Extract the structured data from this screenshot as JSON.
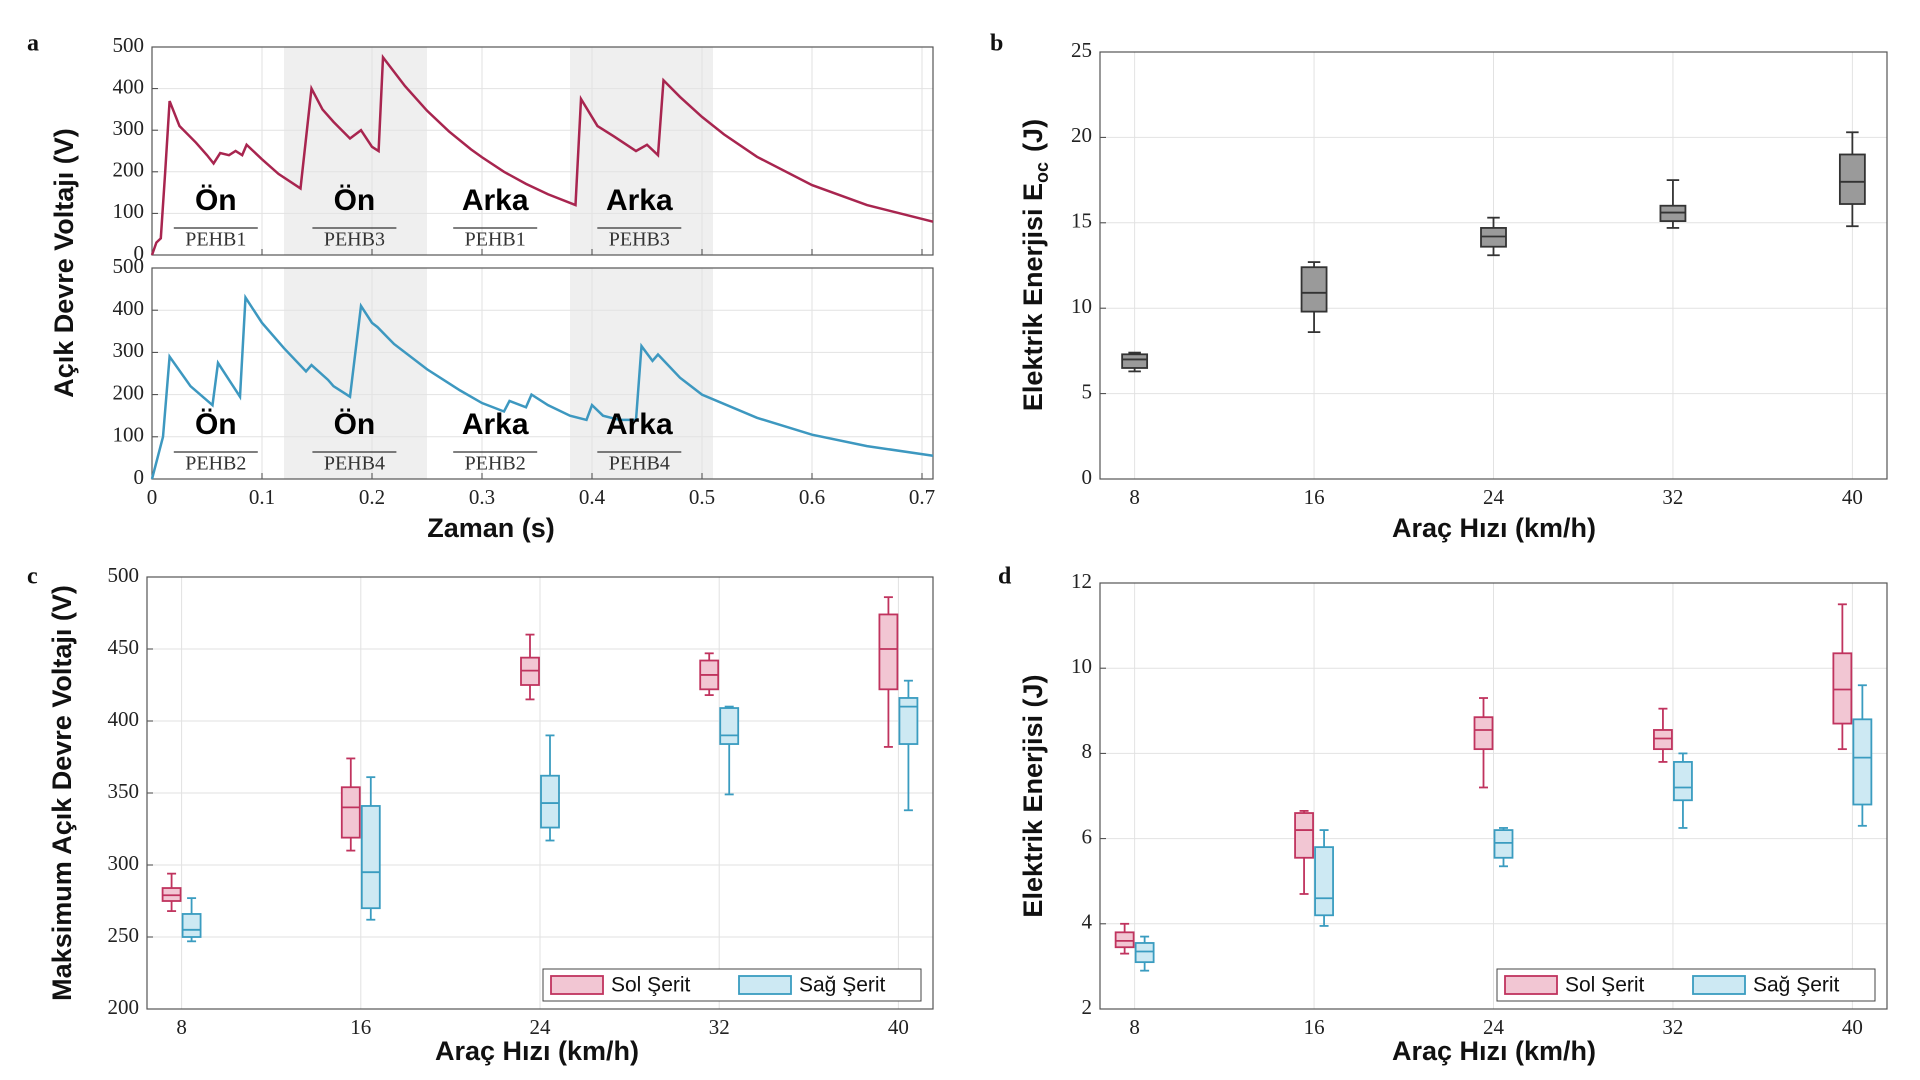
{
  "chart_data": [
    {
      "type": "line",
      "panel": "a",
      "ylabel": "Açık Devre Voltajı (V)",
      "color": "#a8254f",
      "xlim": [
        0,
        0.71
      ],
      "xticks": [
        0,
        0.1,
        0.2,
        0.3,
        0.4,
        0.5,
        0.6,
        0.7
      ],
      "xtick_labels": false,
      "ylim": [
        0,
        500
      ],
      "yticks": [
        0,
        100,
        200,
        300,
        400,
        500
      ],
      "grid": true,
      "bands": [
        [
          0.12,
          0.25
        ],
        [
          0.38,
          0.51
        ]
      ],
      "annotations": [
        {
          "text": "Ön",
          "sub": "PEHB1",
          "x": 0.058
        },
        {
          "text": "Ön",
          "sub": "PEHB3",
          "x": 0.184
        },
        {
          "text": "Arka",
          "sub": "PEHB1",
          "x": 0.312
        },
        {
          "text": "Arka",
          "sub": "PEHB3",
          "x": 0.443
        }
      ],
      "x": [
        0,
        0.004,
        0.008,
        0.012,
        0.016,
        0.025,
        0.04,
        0.05,
        0.056,
        0.062,
        0.07,
        0.076,
        0.082,
        0.086,
        0.1,
        0.115,
        0.135,
        0.145,
        0.155,
        0.165,
        0.18,
        0.19,
        0.2,
        0.206,
        0.21,
        0.23,
        0.25,
        0.27,
        0.29,
        0.3,
        0.32,
        0.34,
        0.36,
        0.385,
        0.39,
        0.405,
        0.42,
        0.44,
        0.45,
        0.46,
        0.465,
        0.48,
        0.5,
        0.52,
        0.55,
        0.6,
        0.65,
        0.71
      ],
      "values": [
        0,
        30,
        40,
        200,
        370,
        310,
        270,
        240,
        220,
        245,
        240,
        250,
        240,
        265,
        230,
        195,
        160,
        400,
        350,
        320,
        280,
        300,
        260,
        250,
        475,
        406,
        347,
        297,
        254,
        235,
        200,
        171,
        146,
        120,
        375,
        310,
        285,
        250,
        265,
        240,
        420,
        380,
        332,
        290,
        236,
        168,
        120,
        80
      ]
    },
    {
      "type": "line",
      "color": "#3d98c0",
      "xlabel": "Zaman (s)",
      "xlim": [
        0,
        0.71
      ],
      "xticks": [
        0,
        0.1,
        0.2,
        0.3,
        0.4,
        0.5,
        0.6,
        0.7
      ],
      "ylim": [
        0,
        500
      ],
      "yticks": [
        0,
        100,
        200,
        300,
        400,
        500
      ],
      "grid": true,
      "bands": [
        [
          0.12,
          0.25
        ],
        [
          0.38,
          0.51
        ]
      ],
      "annotations": [
        {
          "text": "Ön",
          "sub": "PEHB2",
          "x": 0.058
        },
        {
          "text": "Ön",
          "sub": "PEHB4",
          "x": 0.184
        },
        {
          "text": "Arka",
          "sub": "PEHB2",
          "x": 0.312
        },
        {
          "text": "Arka",
          "sub": "PEHB4",
          "x": 0.443
        }
      ],
      "x": [
        0,
        0.005,
        0.01,
        0.016,
        0.035,
        0.055,
        0.06,
        0.08,
        0.085,
        0.1,
        0.12,
        0.14,
        0.145,
        0.16,
        0.165,
        0.18,
        0.19,
        0.2,
        0.205,
        0.22,
        0.25,
        0.28,
        0.3,
        0.32,
        0.325,
        0.34,
        0.345,
        0.36,
        0.38,
        0.395,
        0.4,
        0.41,
        0.425,
        0.44,
        0.445,
        0.455,
        0.46,
        0.48,
        0.5,
        0.55,
        0.6,
        0.65,
        0.71
      ],
      "values": [
        0,
        50,
        100,
        290,
        220,
        175,
        275,
        195,
        430,
        370,
        310,
        255,
        270,
        235,
        220,
        195,
        410,
        370,
        360,
        320,
        260,
        210,
        180,
        160,
        185,
        170,
        200,
        175,
        150,
        140,
        175,
        150,
        140,
        140,
        315,
        280,
        295,
        240,
        200,
        145,
        105,
        78,
        55
      ]
    },
    {
      "type": "box",
      "panel": "b",
      "ylabel": "Elektrik Enerjisi  E",
      "ylabel_sub": "oc",
      "ylabel_unit": "(J)",
      "xlabel": "Araç Hızı (km/h)",
      "categories": [
        "8",
        "16",
        "24",
        "32",
        "40"
      ],
      "ylim": [
        0,
        25
      ],
      "yticks": [
        0,
        5,
        10,
        15,
        20,
        25
      ],
      "grid": true,
      "series": [
        {
          "color": "#333333",
          "fill": "#9a9a9a",
          "values": [
            [
              6.3,
              6.5,
              7.0,
              7.3,
              7.4
            ],
            [
              8.6,
              9.8,
              10.9,
              12.4,
              12.7
            ],
            [
              13.1,
              13.6,
              14.2,
              14.7,
              15.3
            ],
            [
              14.7,
              15.1,
              15.6,
              16.0,
              17.5
            ],
            [
              14.8,
              16.1,
              17.4,
              19.0,
              20.3
            ]
          ]
        }
      ]
    },
    {
      "type": "box",
      "panel": "c",
      "ylabel": "Maksimum Açık Devre Voltajı (V)",
      "xlabel": "Araç Hızı (km/h)",
      "categories": [
        "8",
        "16",
        "24",
        "32",
        "40"
      ],
      "ylim": [
        200,
        500
      ],
      "yticks": [
        200,
        250,
        300,
        350,
        400,
        450,
        500
      ],
      "grid": true,
      "legend": "lower right",
      "series": [
        {
          "name": "Sol Şerit",
          "color": "#c0335e",
          "fill": "#f2c6d3",
          "values": [
            [
              268,
              275,
              279,
              284,
              294
            ],
            [
              310,
              319,
              340,
              354,
              374
            ],
            [
              415,
              425,
              435,
              444,
              460
            ],
            [
              418,
              422,
              432,
              442,
              447
            ],
            [
              382,
              422,
              450,
              474,
              486
            ]
          ]
        },
        {
          "name": "Sağ Şerit",
          "color": "#3a9cc0",
          "fill": "#cde9f3",
          "values": [
            [
              247,
              250,
              255,
              266,
              277
            ],
            [
              262,
              270,
              295,
              341,
              361
            ],
            [
              317,
              326,
              343,
              362,
              390
            ],
            [
              349,
              384,
              390,
              409,
              410
            ],
            [
              338,
              384,
              410,
              416,
              428
            ]
          ]
        }
      ]
    },
    {
      "type": "box",
      "panel": "d",
      "ylabel": "Elektrik Enerjisi (J)",
      "xlabel": "Araç Hızı (km/h)",
      "categories": [
        "8",
        "16",
        "24",
        "32",
        "40"
      ],
      "ylim": [
        2,
        12
      ],
      "yticks": [
        2,
        4,
        6,
        8,
        10,
        12
      ],
      "grid": true,
      "legend": "lower right",
      "series": [
        {
          "name": "Sol Şerit",
          "color": "#c0335e",
          "fill": "#f2c6d3",
          "values": [
            [
              3.3,
              3.45,
              3.6,
              3.8,
              4.0
            ],
            [
              4.7,
              5.55,
              6.2,
              6.6,
              6.65
            ],
            [
              7.2,
              8.1,
              8.55,
              8.85,
              9.3
            ],
            [
              7.8,
              8.1,
              8.35,
              8.55,
              9.05
            ],
            [
              8.1,
              8.7,
              9.5,
              10.35,
              11.5
            ]
          ]
        },
        {
          "name": "Sağ Şerit",
          "color": "#3a9cc0",
          "fill": "#cde9f3",
          "values": [
            [
              2.9,
              3.1,
              3.35,
              3.55,
              3.7
            ],
            [
              3.95,
              4.2,
              4.6,
              5.8,
              6.2
            ],
            [
              5.35,
              5.55,
              5.9,
              6.2,
              6.25
            ],
            [
              6.25,
              6.9,
              7.2,
              7.8,
              8.0
            ],
            [
              6.3,
              6.8,
              7.9,
              8.8,
              9.6
            ]
          ]
        }
      ]
    }
  ]
}
